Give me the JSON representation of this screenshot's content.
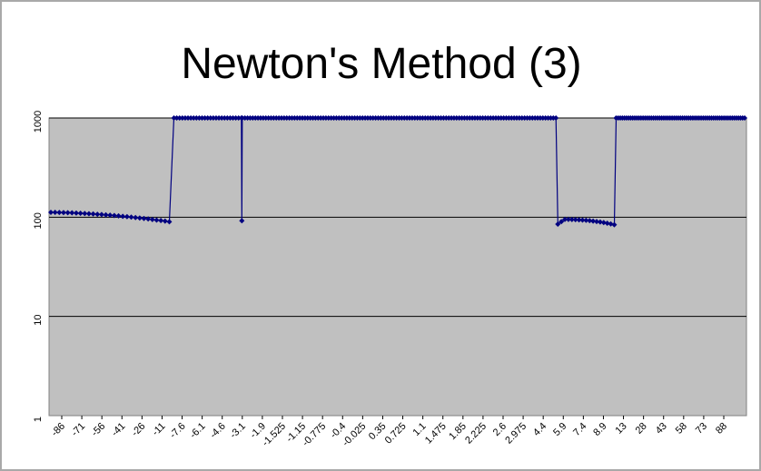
{
  "chart_data": {
    "type": "line",
    "title": "Newton's Method (3)",
    "xlabel": "",
    "ylabel": "",
    "y_scale": "log",
    "ylim": [
      1,
      1000
    ],
    "y_ticks": [
      "1",
      "10",
      "100",
      "1000"
    ],
    "x_tick_labels": [
      "-86",
      "-71",
      "-56",
      "-41",
      "-26",
      "-11",
      "-7.6",
      "-6.1",
      "-4.6",
      "-3.1",
      "-1.9",
      "-1.525",
      "-1.15",
      "-0.775",
      "-0.4",
      "-0.025",
      "0.35",
      "0.725",
      "1.1",
      "1.475",
      "1.85",
      "2.225",
      "2.6",
      "2.975",
      "4.4",
      "5.9",
      "7.4",
      "8.9",
      "13",
      "28",
      "43",
      "58",
      "73",
      "88"
    ],
    "grid": true,
    "legend": "none",
    "plot_background": "#c0c0c0",
    "series_color": "#000080",
    "series": [
      {
        "segments": [
          {
            "from": "-86",
            "to": "-11",
            "y_start": 112,
            "y_end": 90
          },
          {
            "from": "-7.6",
            "to": "-3.1",
            "y": 1000
          },
          {
            "at": "-3.1",
            "y": 92
          },
          {
            "from": "-3.1",
            "to": "4.4",
            "y": 1000
          },
          {
            "from": "5.9",
            "to": "8.9",
            "y_start": 85,
            "y_peak": 95,
            "y_end": 84
          },
          {
            "from": "8.9",
            "to": "88",
            "y": 1000
          }
        ]
      }
    ]
  }
}
